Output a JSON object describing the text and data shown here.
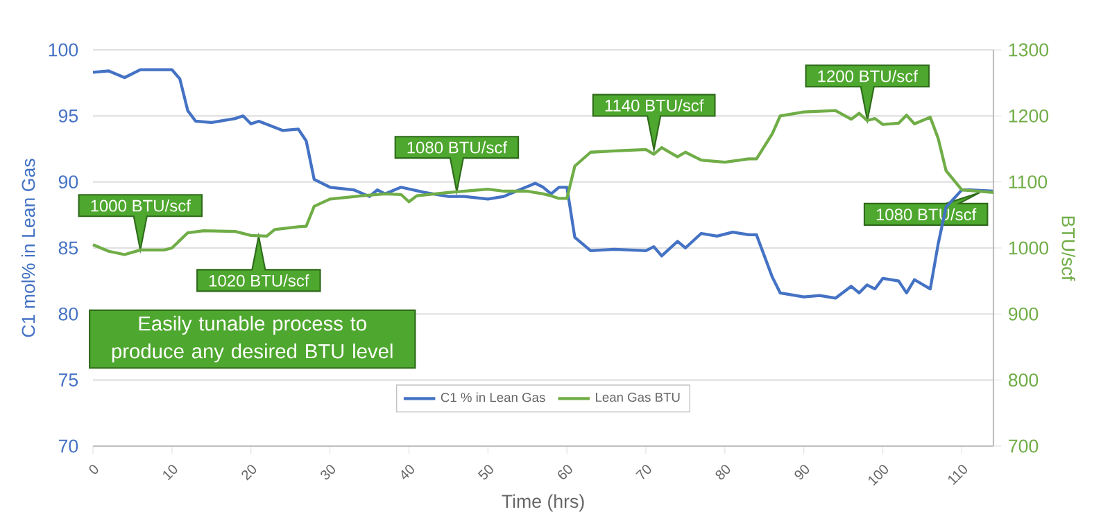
{
  "chart_data": {
    "type": "line",
    "xlabel": "Time (hrs)",
    "ylabel": "C1 mol% in Lean Gas",
    "y2label": "BTU/scf",
    "xlim": [
      0,
      114
    ],
    "xticks": [
      0,
      10,
      20,
      30,
      40,
      50,
      60,
      70,
      80,
      90,
      100,
      110
    ],
    "ylim": [
      70,
      100
    ],
    "yticks": [
      70,
      75,
      80,
      85,
      90,
      95,
      100
    ],
    "y2lim": [
      700,
      1300
    ],
    "y2ticks": [
      700,
      800,
      900,
      1000,
      1100,
      1200,
      1300
    ],
    "grid": "y",
    "legend": "bottom",
    "marker": "none",
    "line_style": "solid",
    "series": [
      {
        "name": "C1 % in Lean Gas",
        "color": "#4472c4",
        "x": [
          0,
          2,
          4,
          6,
          8,
          10,
          11,
          12,
          13,
          15,
          18,
          19,
          20,
          21,
          24,
          26,
          27,
          28,
          30,
          33,
          35,
          36,
          37,
          39,
          42,
          45,
          47,
          50,
          52,
          54,
          56,
          57,
          58,
          59,
          60,
          61,
          63,
          66,
          70,
          71,
          72,
          74,
          75,
          77,
          79,
          81,
          83,
          84,
          85,
          86,
          87,
          90,
          92,
          94,
          96,
          97,
          98,
          99,
          100,
          102,
          103,
          104,
          106,
          107,
          108,
          110,
          111,
          114
        ],
        "values": [
          98.3,
          98.4,
          97.9,
          98.5,
          98.5,
          98.5,
          97.8,
          95.4,
          94.6,
          94.5,
          94.8,
          95.0,
          94.4,
          94.6,
          93.9,
          94.0,
          93.1,
          90.2,
          89.6,
          89.4,
          88.9,
          89.4,
          89.1,
          89.6,
          89.2,
          88.9,
          88.9,
          88.7,
          88.9,
          89.4,
          89.9,
          89.6,
          89.1,
          89.6,
          89.6,
          85.8,
          84.8,
          84.9,
          84.8,
          85.1,
          84.4,
          85.5,
          85.0,
          86.1,
          85.9,
          86.2,
          86.0,
          86.0,
          84.4,
          82.8,
          81.6,
          81.3,
          81.4,
          81.2,
          82.1,
          81.6,
          82.2,
          81.9,
          82.7,
          82.5,
          81.6,
          82.6,
          81.9,
          85.3,
          88.1,
          89.4,
          89.4,
          89.3
        ]
      },
      {
        "name": "Lean Gas BTU",
        "color": "#70ad47",
        "axis": "y2",
        "x": [
          0,
          2,
          4,
          6,
          9,
          10,
          12,
          14,
          18,
          20,
          22,
          23,
          26,
          27,
          28,
          30,
          34,
          37,
          39,
          40,
          41,
          45,
          50,
          52,
          55,
          57,
          58,
          59,
          60,
          61,
          63,
          66,
          70,
          71,
          72,
          74,
          75,
          77,
          80,
          83,
          84,
          86,
          87,
          90,
          94,
          96,
          97,
          98,
          99,
          100,
          102,
          103,
          104,
          106,
          107,
          108,
          110,
          114
        ],
        "values": [
          1005,
          995,
          990,
          997,
          997,
          1000,
          1023,
          1026,
          1025,
          1019,
          1018,
          1028,
          1032,
          1033,
          1063,
          1074,
          1079,
          1082,
          1081,
          1070,
          1079,
          1084,
          1089,
          1086,
          1086,
          1082,
          1079,
          1075,
          1075,
          1124,
          1145,
          1147,
          1149,
          1142,
          1152,
          1138,
          1145,
          1133,
          1130,
          1135,
          1135,
          1173,
          1200,
          1206,
          1208,
          1195,
          1204,
          1193,
          1196,
          1187,
          1189,
          1201,
          1188,
          1198,
          1166,
          1117,
          1088,
          1084
        ]
      }
    ],
    "annotations": [
      "1000 BTU/scf",
      "1020 BTU/scf",
      "1080 BTU/scf",
      "1140 BTU/scf",
      "1200 BTU/scf",
      "1080 BTU/scf",
      "Easily tunable process to produce any desired BTU level"
    ]
  }
}
